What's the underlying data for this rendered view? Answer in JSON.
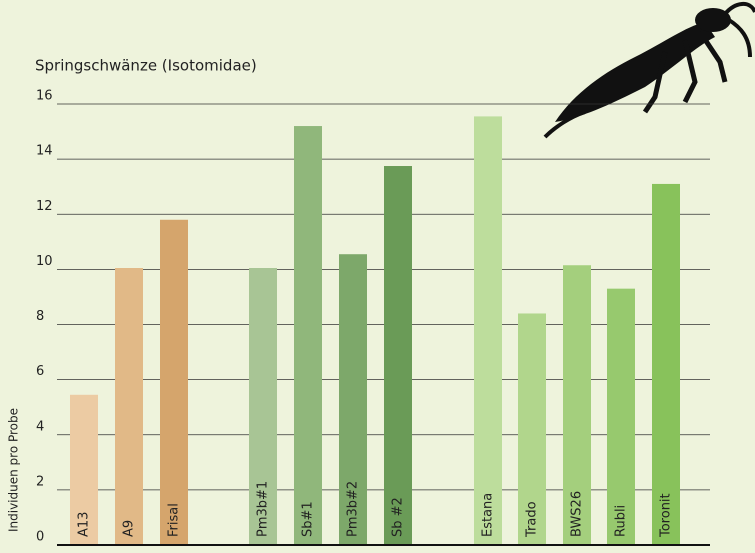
{
  "chart_data": {
    "type": "bar",
    "title": "Springschwänze (Isotomidae)",
    "y_label": "Individuen pro Probe",
    "categories": [
      "A13",
      "A9",
      "Frisal",
      "Pm3b#1",
      "Sb#1",
      "Pm3b#2",
      "Sb #2",
      "Estana",
      "Trado",
      "BWS26",
      "Rubli",
      "Toronit"
    ],
    "values": [
      5.45,
      10.05,
      11.8,
      10.05,
      15.2,
      10.55,
      13.75,
      15.55,
      8.4,
      10.15,
      9.3,
      13.1
    ],
    "colors": [
      "#eccba3",
      "#e1b987",
      "#d5a56c",
      "#a8c595",
      "#90b77b",
      "#7da86a",
      "#6a9b57",
      "#bddd9c",
      "#b1d68c",
      "#a4cf7d",
      "#97c96e",
      "#88c25b"
    ],
    "ylim": [
      0,
      16
    ],
    "yticks": [
      0,
      2,
      4,
      6,
      8,
      10,
      12,
      14,
      16
    ],
    "grid": true
  }
}
